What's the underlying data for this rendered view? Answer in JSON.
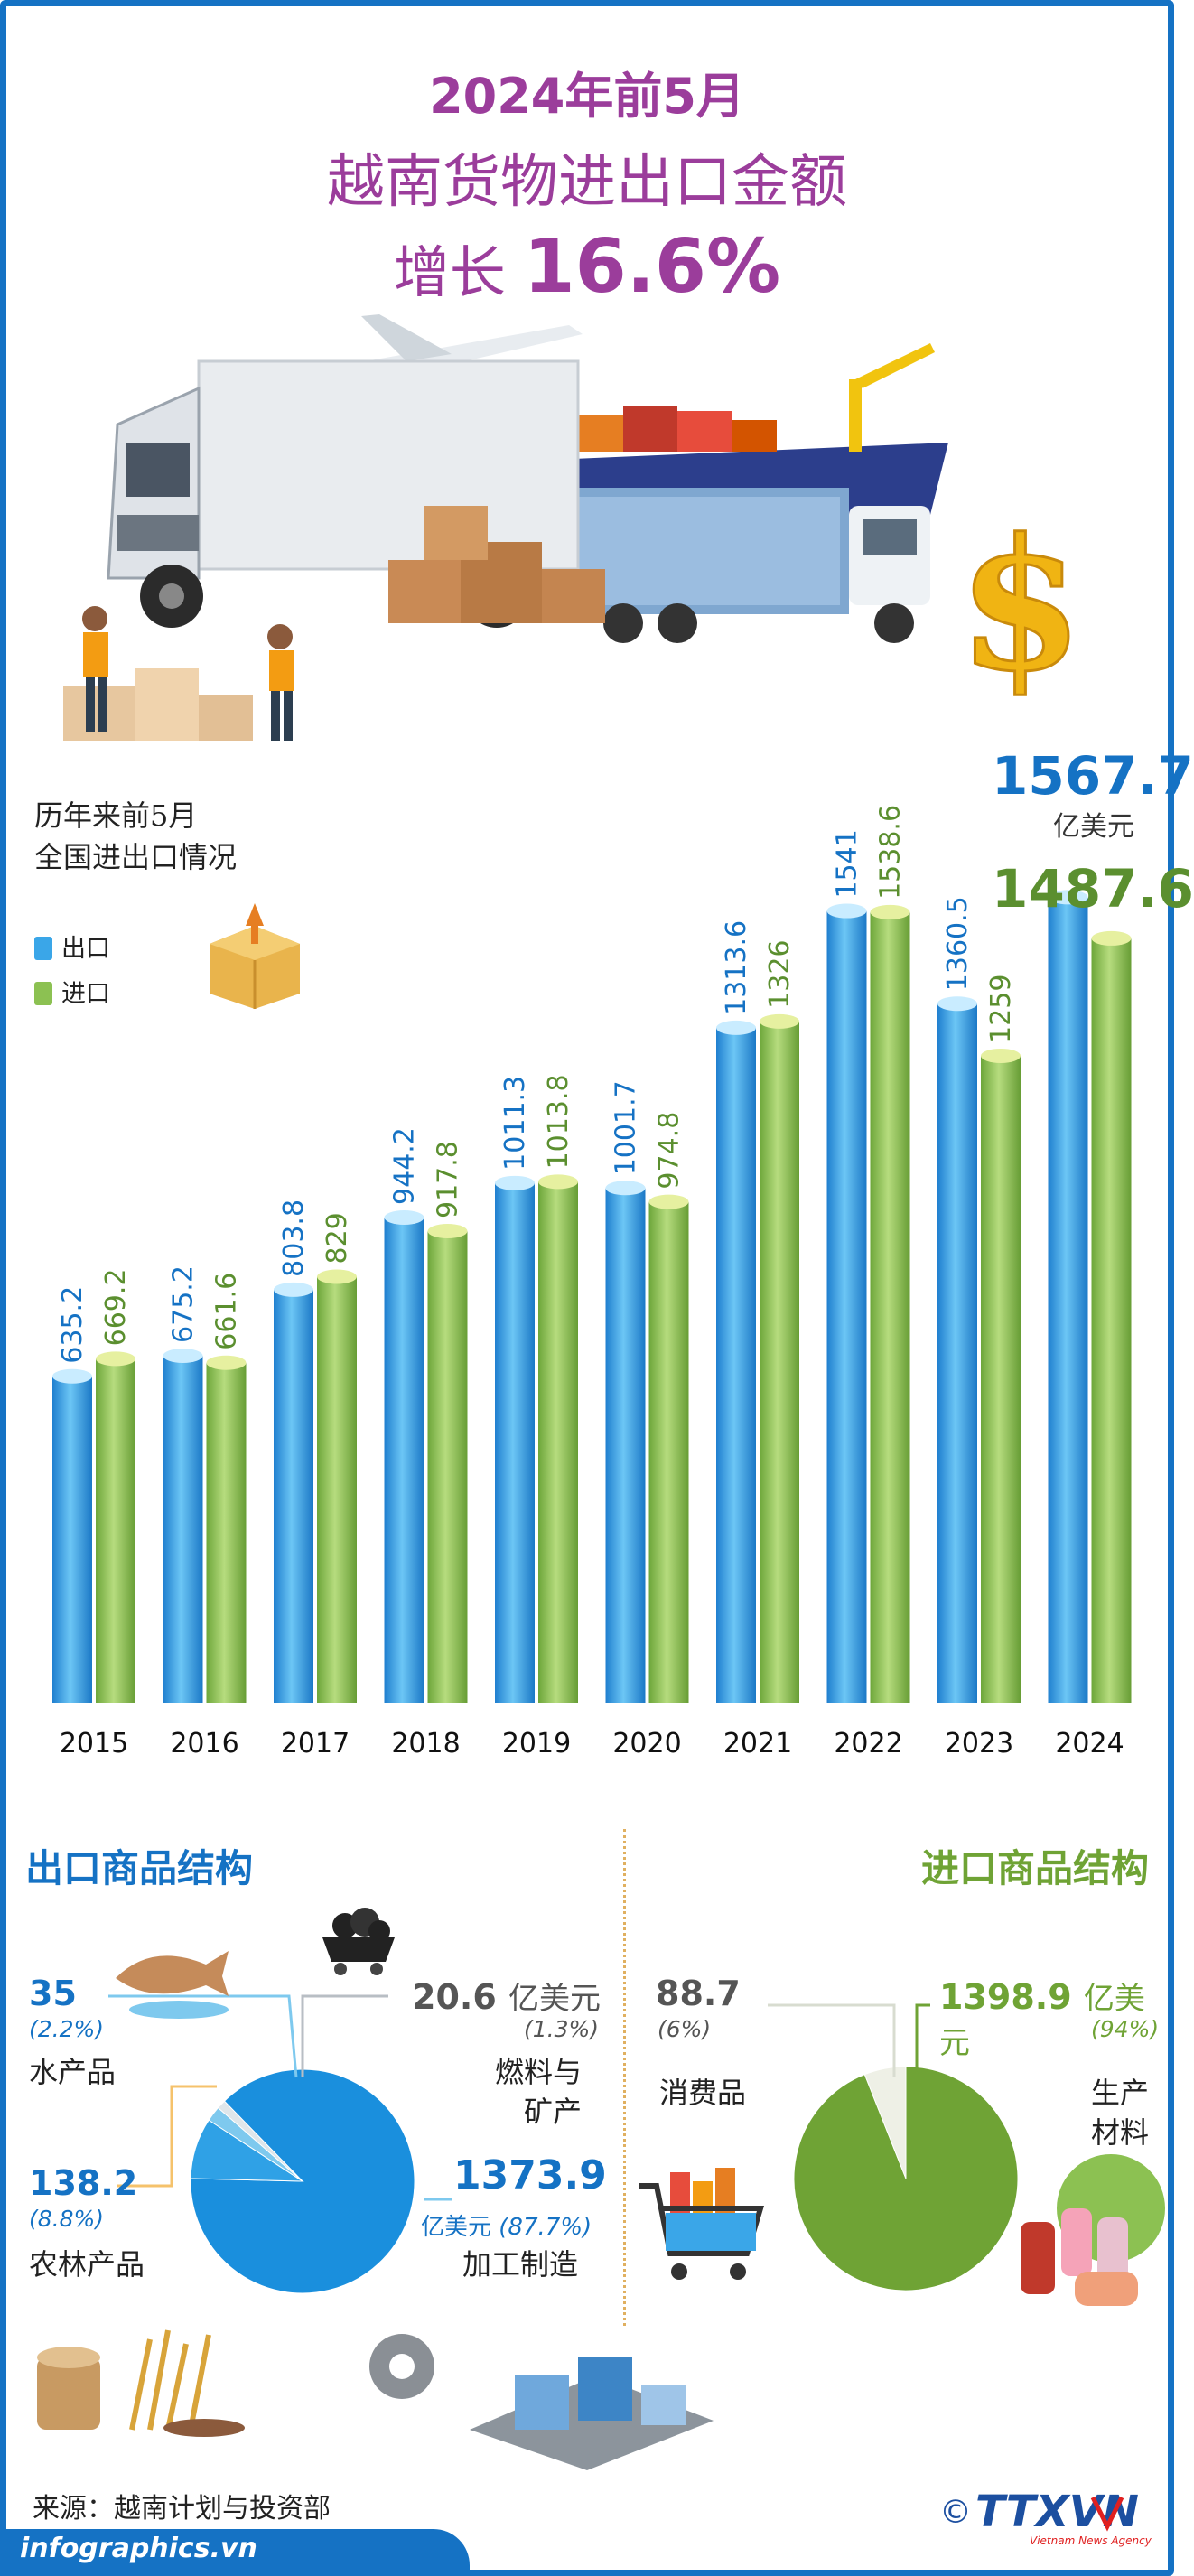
{
  "title": {
    "line1": "2024年前5月",
    "line2": "越南货物进出口金额",
    "line3_prefix": "增长",
    "line3_value": "16.6%"
  },
  "legend": {
    "title_line1": "历年来前5月",
    "title_line2": "全国进出口情况",
    "export_label": "出口",
    "import_label": "进口"
  },
  "colors": {
    "export": "#3aa6e8",
    "import": "#8cc152",
    "title": "#9b3d9b",
    "brand_blue": "#1572c4"
  },
  "chart_data": {
    "type": "bar",
    "categories": [
      "2015",
      "2016",
      "2017",
      "2018",
      "2019",
      "2020",
      "2021",
      "2022",
      "2023",
      "2024"
    ],
    "series": [
      {
        "name": "出口",
        "values": [
          635.2,
          675.2,
          803.8,
          944.2,
          1011.3,
          1001.7,
          1313.6,
          1541,
          1360.5,
          1567.7
        ]
      },
      {
        "name": "进口",
        "values": [
          669.2,
          661.6,
          829,
          917.8,
          1013.8,
          974.8,
          1326,
          1538.6,
          1259,
          1487.6
        ]
      }
    ],
    "value_labels": {
      "export": [
        "635.2",
        "675.2",
        "803.8",
        "944.2",
        "1011.3",
        "1001.7",
        "1313.6",
        "1541",
        "1360.5",
        "1567.7"
      ],
      "import": [
        "669.2",
        "661.6",
        "829",
        "917.8",
        "1013.8",
        "974.8",
        "1326",
        "1538.6",
        "1259",
        "1487.6"
      ]
    },
    "ylim": [
      0,
      1600
    ],
    "grid": false,
    "unit": "亿美元"
  },
  "callout_2024": {
    "export_value": "1567.7",
    "unit": "亿美元",
    "import_value": "1487.6"
  },
  "export_structure": {
    "title": "出口商品结构",
    "items": [
      {
        "value": "35",
        "pct": "(2.2%)",
        "label": "水产品",
        "share": 2.2
      },
      {
        "value": "138.2",
        "pct": "(8.8%)",
        "label": "农林产品",
        "share": 8.8
      },
      {
        "value": "20.6",
        "unit": "亿美元",
        "pct": "(1.3%)",
        "label_line1": "燃料与",
        "label_line2": "矿产",
        "share": 1.3
      },
      {
        "value": "1373.9",
        "unit": "亿美元",
        "pct": "(87.7%)",
        "label": "加工制造",
        "share": 87.7
      }
    ]
  },
  "import_structure": {
    "title": "进口商品结构",
    "items": [
      {
        "value": "88.7",
        "pct": "(6%)",
        "label": "消费品",
        "share": 6
      },
      {
        "value": "1398.9",
        "unit": "亿美元",
        "pct": "(94%)",
        "label_line1": "生产",
        "label_line2": "材料",
        "share": 94
      }
    ]
  },
  "source": "来源：越南计划与投资部",
  "footer": {
    "site": "infographics.vn",
    "logo": "TTXVN",
    "logo_sub": "Vietnam News Agency",
    "copyright": "©"
  }
}
